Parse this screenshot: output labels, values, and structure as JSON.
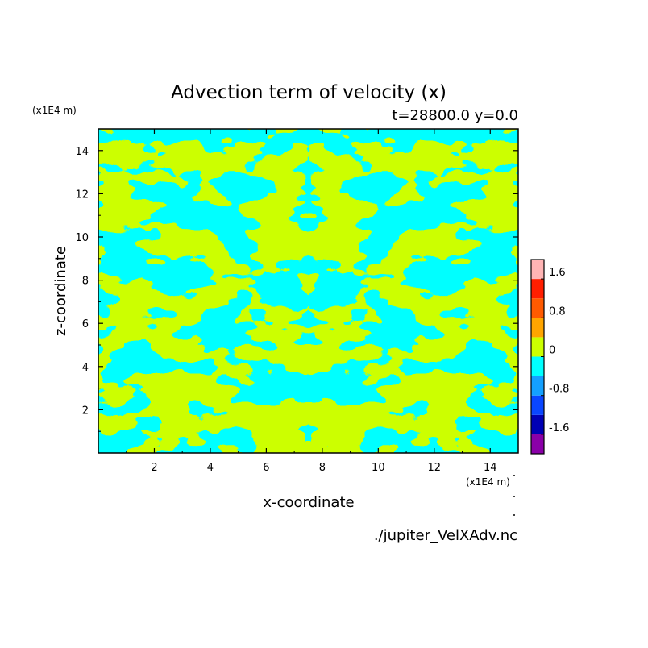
{
  "chart_data": {
    "type": "heatmap",
    "title": "Advection term of velocity (x)",
    "subtitle": "t=28800.0 y=0.0",
    "xlabel": "x-coordinate",
    "ylabel": "z-coordinate",
    "x_unit": "(x1E4 m)",
    "y_unit": "(x1E4 m)",
    "source": "./jupiter_VelXAdv.nc",
    "xlim": [
      0,
      15
    ],
    "ylim": [
      0,
      15
    ],
    "xticks": [
      "2",
      "4",
      "6",
      "8",
      "10",
      "12",
      "14"
    ],
    "yticks": [
      "2",
      "4",
      "6",
      "8",
      "10",
      "12",
      "14"
    ],
    "colorbar": {
      "levels": [
        {
          "range": [
            -2.0,
            -1.6
          ],
          "color": "#8a00a8"
        },
        {
          "range": [
            -1.6,
            -1.2
          ],
          "color": "#0000b4"
        },
        {
          "range": [
            -1.2,
            -0.8
          ],
          "color": "#0a46ff"
        },
        {
          "range": [
            -0.8,
            -0.4
          ],
          "color": "#14a0ff"
        },
        {
          "range": [
            -0.4,
            0.0
          ],
          "color": "#00ffff"
        },
        {
          "range": [
            0.0,
            0.4
          ],
          "color": "#ccff00"
        },
        {
          "range": [
            0.4,
            0.8
          ],
          "color": "#ffa500"
        },
        {
          "range": [
            0.8,
            1.2
          ],
          "color": "#ff5a00"
        },
        {
          "range": [
            1.2,
            1.6
          ],
          "color": "#ff1e00"
        },
        {
          "range": [
            1.6,
            2.0
          ],
          "color": "#ffb4b4"
        }
      ],
      "tick_labels": [
        "1.6",
        "0.8",
        "0",
        "-0.8",
        "-1.6"
      ]
    },
    "field_description": "mirror-symmetric mix of values slightly above 0 and slightly below 0",
    "colors": {
      "positive": "#ccff00",
      "negative": "#00ffff"
    }
  }
}
